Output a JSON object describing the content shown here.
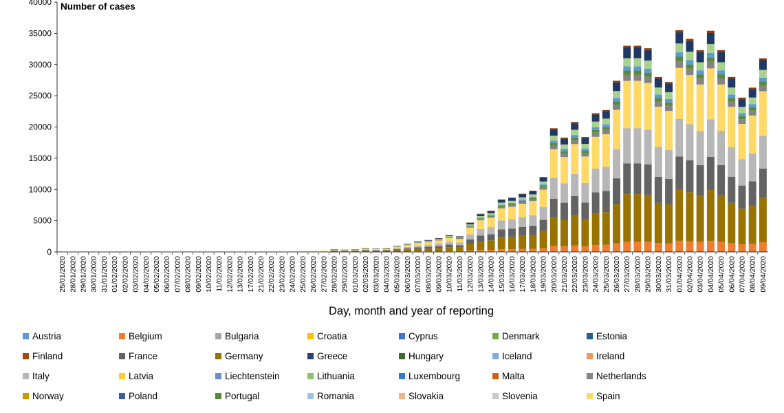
{
  "chart_data": {
    "type": "bar",
    "stacked": true,
    "ylabel": "Number of cases",
    "xlabel": "Day, month and year of reporting",
    "ylim": [
      0,
      40000
    ],
    "yticks": [
      0,
      5000,
      10000,
      15000,
      20000,
      25000,
      30000,
      35000,
      40000
    ],
    "grid": false,
    "legend_position": "bottom",
    "categories": [
      "25/01/2020",
      "28/01/2020",
      "29/01/2020",
      "30/01/2020",
      "31/01/2020",
      "01/02/2020",
      "02/02/2020",
      "03/02/2020",
      "04/02/2020",
      "05/02/2020",
      "06/02/2020",
      "07/02/2020",
      "08/02/2020",
      "09/02/2020",
      "10/02/2020",
      "11/02/2020",
      "12/02/2020",
      "13/02/2020",
      "17/02/2020",
      "21/02/2020",
      "22/02/2020",
      "23/02/2020",
      "24/02/2020",
      "25/02/2020",
      "26/02/2020",
      "27/02/2020",
      "28/02/2020",
      "29/02/2020",
      "01/03/2020",
      "02/03/2020",
      "03/03/2020",
      "04/03/2020",
      "05/03/2020",
      "06/03/2020",
      "07/03/2020",
      "08/03/2020",
      "09/03/2020",
      "10/03/2020",
      "11/03/2020",
      "12/03/2020",
      "13/03/2020",
      "14/03/2020",
      "15/03/2020",
      "16/03/2020",
      "17/03/2020",
      "18/03/2020",
      "19/03/2020",
      "20/03/2020",
      "21/03/2020",
      "22/03/2020",
      "23/03/2020",
      "24/03/2020",
      "25/03/2020",
      "26/03/2020",
      "27/03/2020",
      "28/03/2020",
      "29/03/2020",
      "30/03/2020",
      "31/03/2020",
      "01/04/2020",
      "02/04/2020",
      "03/04/2020",
      "04/04/2020",
      "05/04/2020",
      "06/04/2020",
      "07/04/2020",
      "08/04/2020",
      "09/04/2020"
    ],
    "totals": [
      5,
      5,
      5,
      5,
      5,
      5,
      5,
      5,
      5,
      5,
      5,
      5,
      5,
      5,
      5,
      5,
      5,
      5,
      5,
      20,
      40,
      60,
      80,
      100,
      150,
      200,
      400,
      350,
      400,
      650,
      550,
      650,
      1000,
      1300,
      1700,
      1900,
      2200,
      2700,
      2500,
      4700,
      6100,
      6600,
      8400,
      8700,
      9300,
      9800,
      12000,
      19800,
      18300,
      20800,
      18400,
      22200,
      22700,
      27400,
      33000,
      33000,
      32600,
      28000,
      27200,
      35500,
      34100,
      32300,
      35400,
      32300,
      28000,
      24700,
      26300,
      31000
    ],
    "shares": {
      "Belgium": 0.05,
      "Germany": 0.23,
      "France": 0.15,
      "Italy": 0.17,
      "Spain": 0.23,
      "Netherlands": 0.03,
      "Portugal": 0.02,
      "Austria": 0.02,
      "Switzerland": 0.04,
      "United Kingdom": 0.05,
      "Others": 0.01
    },
    "legend": [
      "Austria",
      "Belgium",
      "Bulgaria",
      "Croatia",
      "Cyprus",
      "Denmark",
      "Estonia",
      "Finland",
      "France",
      "Germany",
      "Greece",
      "Hungary",
      "Iceland",
      "Ireland",
      "Italy",
      "Latvia",
      "Liechtenstein",
      "Lithuania",
      "Luxembourg",
      "Malta",
      "Netherlands",
      "Norway",
      "Poland",
      "Portugal",
      "Romania",
      "Slovakia",
      "Slovenia",
      "Spain"
    ],
    "colors": {
      "Austria": "#5b9bd5",
      "Belgium": "#ed7d31",
      "Bulgaria": "#a5a5a5",
      "Croatia": "#ffc000",
      "Cyprus": "#4472c4",
      "Denmark": "#70ad47",
      "Estonia": "#255e91",
      "Finland": "#9e480e",
      "France": "#636363",
      "Germany": "#997300",
      "Greece": "#264478",
      "Hungary": "#43682b",
      "Iceland": "#7cafdd",
      "Ireland": "#f1975a",
      "Italy": "#b7b7b7",
      "Latvia": "#ffcd33",
      "Liechtenstein": "#698ed0",
      "Lithuania": "#8cc168",
      "Luxembourg": "#327dc2",
      "Malta": "#d26012",
      "Netherlands": "#848484",
      "Norway": "#cc9a00",
      "Poland": "#3a5da0",
      "Portugal": "#5a8a39",
      "Romania": "#9dc3e6",
      "Slovakia": "#f4b183",
      "Slovenia": "#c9c9c9",
      "Spain": "#ffd966",
      "Switzerland": "#a9d18e",
      "United Kingdom": "#1f3864",
      "Others": "#843c0c"
    }
  }
}
